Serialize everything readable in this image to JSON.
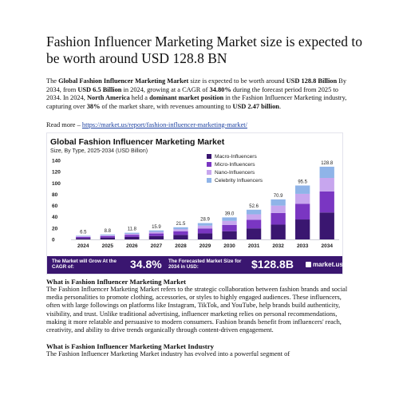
{
  "document": {
    "title": "Fashion Influencer Marketing Market size is expected to be worth around USD 128.8 BN",
    "intro": {
      "p1": "The ",
      "b1": "Global Fashion Influencer Marketing Market",
      "p2": " size is expected to be worth around ",
      "b2": "USD 128.8 Billion",
      "p3": " By 2034, from ",
      "b3": "USD 6.5 Billion",
      "p4": " in 2024, growing at a CAGR of ",
      "b4": "34.80%",
      "p5": " during the forecast period from 2025 to 2034. In 2024, ",
      "b5": "North America",
      "p6": " held a ",
      "b6": "dominant market position",
      "p7": " in the Fashion Influencer Marketing industry, capturing over ",
      "b7": "38%",
      "p8": " of the market share, with revenues amounting to ",
      "b8": "USD 2.47 billion",
      "p9": "."
    },
    "read_more_label": "Read more – ",
    "read_more_link": "https://market.us/report/fashion-influencer-marketing-market/",
    "section1_heading": "What is Fashion Influencer Marketing Market",
    "section1_text": " The Fashion Influencer Marketing Market refers to the strategic collaboration between fashion brands and social media personalities to promote clothing, accessories, or styles to highly engaged audiences. These influencers, often with large followings on platforms like Instagram, TikTok, and YouTube, help brands build authenticity, visibility, and trust. Unlike traditional advertising, influencer marketing relies on personal recommendations, making it more relatable and persuasive to modern consumers. Fashion brands benefit from influencers' reach, creativity, and ability to drive trends organically through content-driven engagement.",
    "section2_heading": "What is Fashion Influencer Marketing Market Industry",
    "section2_text": " The Fashion Influencer Marketing Market industry has evolved into a powerful segment of"
  },
  "chart_data": {
    "type": "bar",
    "stacked": true,
    "title": "Global Fashion Influencer Marketing Market",
    "subtitle": "Size, By Type, 2025-2034 (USD Billion)",
    "categories": [
      "2024",
      "2025",
      "2026",
      "2027",
      "2028",
      "2029",
      "2030",
      "2031",
      "2032",
      "2033",
      "2034"
    ],
    "totals": [
      6.5,
      8.8,
      11.8,
      15.9,
      21.5,
      28.9,
      39.0,
      52.6,
      70.9,
      95.5,
      128.8
    ],
    "total_labels": [
      "6.5",
      "8.8",
      "11.8",
      "15.9",
      "21.5",
      "28.9",
      "39.0",
      "52.6",
      "70.9",
      "95.5",
      "128.8"
    ],
    "series": [
      {
        "name": "Macro-Influencers",
        "color": "#3a1670",
        "values": [
          2.4,
          3.3,
          4.4,
          5.9,
          8.0,
          10.7,
          14.4,
          19.5,
          26.2,
          35.3,
          47.7
        ]
      },
      {
        "name": "Micro-Influencers",
        "color": "#7a36c2",
        "values": [
          1.9,
          2.5,
          3.4,
          4.6,
          6.2,
          8.4,
          11.3,
          15.3,
          20.6,
          27.7,
          37.4
        ]
      },
      {
        "name": "Nano-Influencers",
        "color": "#c7a6ee",
        "values": [
          1.2,
          1.6,
          2.2,
          2.9,
          4.0,
          5.3,
          7.2,
          9.7,
          13.1,
          17.7,
          23.8
        ]
      },
      {
        "name": "Celebrity Influencers",
        "color": "#8fb4e8",
        "values": [
          1.0,
          1.4,
          1.8,
          2.5,
          3.3,
          4.5,
          6.1,
          8.1,
          11.0,
          14.8,
          19.9
        ]
      }
    ],
    "yticks": [
      0,
      20,
      40,
      60,
      80,
      100,
      120,
      140
    ],
    "ylim": [
      0,
      140
    ],
    "grid": false,
    "legend_position": "top-right",
    "banner": {
      "cagr_label": "The Market will Grow At the CAGR of:",
      "cagr_value": "34.8%",
      "forecast_label": "The Forecasted Market Size for 2034 in USD:",
      "forecast_value": "$128.8B",
      "brand": "market.us"
    }
  }
}
